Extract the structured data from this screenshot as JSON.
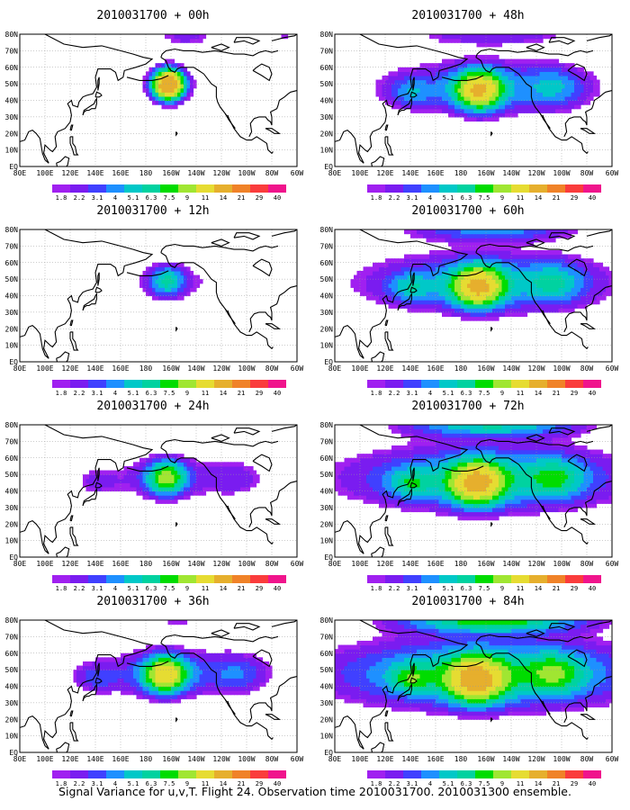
{
  "caption": "Signal Variance for u,v,T. Flight 24. Observation time 2010031700. 2010031300 ensemble.",
  "lat_labels": [
    "80N",
    "70N",
    "60N",
    "50N",
    "40N",
    "30N",
    "20N",
    "10N",
    "EQ"
  ],
  "lon_labels": [
    "80E",
    "100E",
    "120E",
    "140E",
    "160E",
    "180",
    "160W",
    "140W",
    "120W",
    "100W",
    "80W",
    "60W"
  ],
  "colorbar": {
    "labels": [
      "1.8",
      "2.2",
      "3.1",
      "4",
      "5.1",
      "6.3",
      "7.5",
      "9",
      "11",
      "14",
      "21",
      "29",
      "40"
    ],
    "colors": [
      "#a020f0",
      "#7a1cf0",
      "#4040ff",
      "#1e90ff",
      "#00c8c8",
      "#00d2a0",
      "#00dc00",
      "#a0e632",
      "#e6dc32",
      "#e6af2d",
      "#f08228",
      "#fa3c3c",
      "#f0148c"
    ]
  },
  "panels": [
    {
      "title": "2010031700 + 00h",
      "lead_hours": 0
    },
    {
      "title": "2010031700 + 48h",
      "lead_hours": 48
    },
    {
      "title": "2010031700 + 12h",
      "lead_hours": 12
    },
    {
      "title": "2010031700 + 60h",
      "lead_hours": 60
    },
    {
      "title": "2010031700 + 24h",
      "lead_hours": 24
    },
    {
      "title": "2010031700 + 72h",
      "lead_hours": 72
    },
    {
      "title": "2010031700 + 36h",
      "lead_hours": 36
    },
    {
      "title": "2010031700 + 84h",
      "lead_hours": 84
    }
  ]
}
